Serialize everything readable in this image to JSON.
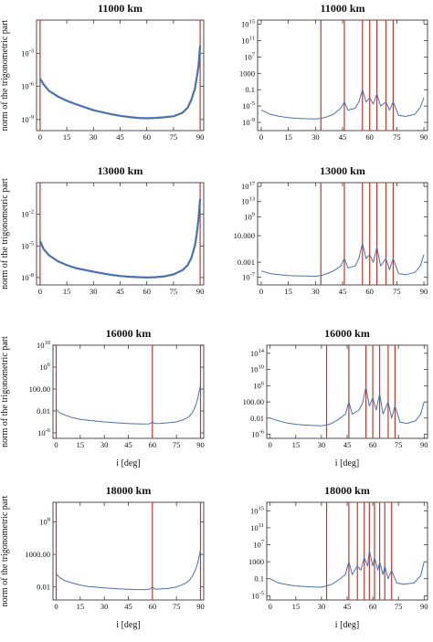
{
  "chart_data": [
    {
      "type": "line",
      "title": "11000 km",
      "xlabel": "",
      "ylabel": "norm of the trigonometric part",
      "xlim": [
        -2,
        92
      ],
      "x_ticks": [
        0,
        15,
        30,
        45,
        60,
        75,
        90
      ],
      "y_scale": "log",
      "ylim": [
        1e-10,
        1
      ],
      "y_ticks": [
        {
          "value": 1e-09,
          "label": "10^-9"
        },
        {
          "value": 1e-06,
          "label": "10^-6"
        },
        {
          "value": 0.001,
          "label": "10^-3"
        }
      ],
      "series_color": "#4a72b0",
      "series_width": 2.2,
      "resonance_color": "#c0392b",
      "resonances": [
        0,
        90
      ],
      "x": [
        0,
        2,
        5,
        10,
        15,
        20,
        30,
        40,
        45,
        50,
        55,
        60,
        65,
        70,
        75,
        80,
        83,
        85,
        87,
        88,
        89,
        90
      ],
      "y": [
        5e-06,
        1.5e-06,
        4e-07,
        1.2e-07,
        5e-08,
        2.5e-08,
        7e-09,
        3e-09,
        2.2e-09,
        1.7e-09,
        1.4e-09,
        1.3e-09,
        1.4e-09,
        1.6e-09,
        2e-09,
        4e-09,
        1.2e-08,
        6e-08,
        6e-07,
        5e-06,
        6e-05,
        0.005
      ]
    },
    {
      "type": "line",
      "title": "11000 km",
      "xlabel": "",
      "ylabel": "",
      "xlim": [
        -2,
        92
      ],
      "x_ticks": [
        0,
        15,
        30,
        45,
        60,
        75,
        90
      ],
      "y_scale": "log",
      "ylim": [
        1e-11,
        1e+16
      ],
      "y_ticks": [
        {
          "value": 1e-09,
          "label": "10^-9"
        },
        {
          "value": 1e-05,
          "label": "10^-5"
        },
        {
          "value": 0.1,
          "label": "0.1"
        },
        {
          "value": 1000,
          "label": "1000"
        },
        {
          "value": 10000000.0,
          "label": "10^7"
        },
        {
          "value": 100000000000.0,
          "label": "10^11"
        },
        {
          "value": 1000000000000000.0,
          "label": "10^15"
        }
      ],
      "series_color": "#4a72b0",
      "series_width": 1,
      "resonance_color": "#c0392b",
      "resonances": [
        33,
        46,
        56,
        60,
        64,
        69,
        73
      ],
      "x": [
        0,
        5,
        10,
        15,
        20,
        25,
        30,
        33,
        36,
        40,
        44,
        46,
        48,
        52,
        54,
        56,
        58,
        60,
        62,
        64,
        66,
        69,
        71,
        73,
        76,
        80,
        85,
        88,
        90
      ],
      "y": [
        1e-06,
        1e-07,
        3e-08,
        1.5e-08,
        1e-08,
        8e-09,
        7e-09,
        1e-08,
        2e-08,
        1e-07,
        3e-06,
        0.0001,
        1e-06,
        3e-06,
        0.0001,
        0.1,
        0.0001,
        0.001,
        3e-05,
        0.01,
        1e-05,
        0.0001,
        1e-06,
        0.0001,
        5e-08,
        3e-08,
        1e-07,
        5e-06,
        0.001
      ]
    },
    {
      "type": "line",
      "title": "13000 km",
      "xlabel": "",
      "ylabel": "norm of the trigonometric part",
      "xlim": [
        -2,
        92
      ],
      "x_ticks": [
        0,
        15,
        30,
        45,
        60,
        75,
        90
      ],
      "y_scale": "log",
      "ylim": [
        2e-09,
        10
      ],
      "y_ticks": [
        {
          "value": 1e-08,
          "label": "10^-8"
        },
        {
          "value": 1e-05,
          "label": "10^-5"
        },
        {
          "value": 0.01,
          "label": "10^-2"
        }
      ],
      "series_color": "#4a72b0",
      "series_width": 2.2,
      "resonance_color": "#c0392b",
      "resonances": [
        0,
        90
      ],
      "x": [
        0,
        2,
        5,
        10,
        15,
        20,
        30,
        40,
        45,
        50,
        55,
        60,
        65,
        70,
        75,
        80,
        83,
        85,
        87,
        88,
        89,
        90
      ],
      "y": [
        3e-05,
        5e-06,
        1.3e-06,
        3.5e-07,
        1.5e-07,
        8e-08,
        3.5e-08,
        1.8e-08,
        1.4e-08,
        1.2e-08,
        1.1e-08,
        1e-08,
        1.1e-08,
        1.3e-08,
        2e-08,
        5e-08,
        1.5e-07,
        7e-07,
        1e-05,
        0.0001,
        0.003,
        0.3
      ]
    },
    {
      "type": "line",
      "title": "13000 km",
      "xlabel": "",
      "ylabel": "",
      "xlim": [
        -2,
        92
      ],
      "x_ticks": [
        0,
        15,
        30,
        45,
        60,
        75,
        90
      ],
      "y_scale": "log",
      "ylim": [
        1e-09,
        1e+18
      ],
      "y_ticks": [
        {
          "value": 1e-07,
          "label": "10^-7"
        },
        {
          "value": 0.001,
          "label": "0.001"
        },
        {
          "value": 10000,
          "label": "10.000"
        },
        {
          "value": 1000000000.0,
          "label": "10^9"
        },
        {
          "value": 10000000000000.0,
          "label": "10^13"
        },
        {
          "value": 1e+17,
          "label": "10^17"
        }
      ],
      "series_color": "#4a72b0",
      "series_width": 1,
      "resonance_color": "#c0392b",
      "resonances": [
        33,
        46,
        56,
        60,
        64,
        69,
        73
      ],
      "x": [
        0,
        5,
        10,
        15,
        20,
        25,
        30,
        33,
        36,
        40,
        44,
        46,
        48,
        52,
        54,
        56,
        58,
        60,
        62,
        64,
        66,
        69,
        71,
        73,
        76,
        80,
        85,
        88,
        90
      ],
      "y": [
        5e-06,
        1e-06,
        5e-07,
        3e-07,
        2.5e-07,
        2.2e-07,
        2e-07,
        3e-07,
        8e-07,
        5e-06,
        0.0001,
        0.01,
        3e-05,
        0.0001,
        0.01,
        100,
        0.01,
        0.1,
        0.001,
        10,
        0.0001,
        0.01,
        1e-05,
        0.01,
        1e-06,
        5e-07,
        2e-06,
        0.0001,
        0.1
      ]
    },
    {
      "type": "line",
      "title": "16000 km",
      "xlabel": "i [deg]",
      "ylabel": "norm of the trigonometric part",
      "xlim": [
        -2,
        92
      ],
      "x_ticks": [
        0,
        15,
        30,
        45,
        60,
        75,
        90
      ],
      "y_scale": "log",
      "ylim": [
        1e-07,
        10000000000.0
      ],
      "y_ticks": [
        {
          "value": 1e-06,
          "label": "10^-6"
        },
        {
          "value": 0.01,
          "label": "0.01"
        },
        {
          "value": 100,
          "label": "100.00"
        },
        {
          "value": 1000000.0,
          "label": "10^6"
        },
        {
          "value": 10000000000.0,
          "label": "10^10"
        }
      ],
      "series_color": "#4a72b0",
      "series_width": 1,
      "resonance_color": "#c0392b",
      "resonances": [
        0,
        60,
        90
      ],
      "x": [
        0,
        2,
        5,
        10,
        15,
        20,
        30,
        40,
        45,
        50,
        55,
        58,
        59,
        60,
        61,
        62,
        65,
        70,
        75,
        80,
        83,
        85,
        87,
        88,
        89,
        90
      ],
      "y": [
        0.02,
        0.005,
        0.002,
        0.0006,
        0.0003,
        0.0002,
        0.0001,
        6e-05,
        5e-05,
        4.5e-05,
        4.2e-05,
        4.5e-05,
        6e-05,
        0.0001,
        6e-05,
        5e-05,
        5.5e-05,
        7e-05,
        0.0001,
        0.0003,
        0.001,
        0.005,
        0.1,
        1,
        20,
        500
      ]
    },
    {
      "type": "line",
      "title": "16000 km",
      "xlabel": "i [deg]",
      "ylabel": "",
      "xlim": [
        -2,
        92
      ],
      "x_ticks": [
        0,
        15,
        30,
        45,
        60,
        75,
        90
      ],
      "y_scale": "log",
      "ylim": [
        1e-07,
        1e+16
      ],
      "y_ticks": [
        {
          "value": 1e-06,
          "label": "10^-6"
        },
        {
          "value": 0.01,
          "label": "0.01"
        },
        {
          "value": 100,
          "label": "100.00"
        },
        {
          "value": 1000000.0,
          "label": "10^6"
        },
        {
          "value": 10000000000.0,
          "label": "10^10"
        },
        {
          "value": 100000000000000.0,
          "label": "10^14"
        }
      ],
      "series_color": "#4a72b0",
      "series_width": 1,
      "resonance_color": "#c0392b",
      "resonances": [
        33,
        46,
        56,
        60,
        64,
        69,
        73
      ],
      "x": [
        0,
        5,
        10,
        15,
        20,
        25,
        30,
        33,
        36,
        40,
        44,
        46,
        48,
        52,
        54,
        56,
        58,
        60,
        62,
        64,
        66,
        69,
        71,
        73,
        76,
        80,
        85,
        88,
        90
      ],
      "y": [
        0.01,
        0.002,
        0.0006,
        0.0003,
        0.0002,
        0.00015,
        0.00012,
        0.0002,
        0.0005,
        0.005,
        0.1,
        100,
        0.1,
        1,
        50,
        500000.0,
        10,
        1000.0,
        1,
        10000.0,
        0.1,
        100,
        0.01,
        10,
        0.001,
        0.0005,
        0.002,
        0.1,
        100
      ]
    },
    {
      "type": "line",
      "title": "18000 km",
      "xlabel": "i [deg]",
      "ylabel": "norm of the trigonometric part",
      "xlim": [
        -2,
        92
      ],
      "x_ticks": [
        0,
        15,
        30,
        45,
        60,
        75,
        90
      ],
      "y_scale": "log",
      "ylim": [
        0.0001,
        100000000000.0
      ],
      "y_ticks": [
        {
          "value": 0.01,
          "label": "0.01"
        },
        {
          "value": 1000,
          "label": "1000.00"
        },
        {
          "value": 100000000.0,
          "label": "10^8"
        }
      ],
      "series_color": "#4a72b0",
      "series_width": 1,
      "resonance_color": "#c0392b",
      "resonances": [
        0,
        60,
        90
      ],
      "x": [
        0,
        2,
        5,
        10,
        15,
        20,
        30,
        40,
        45,
        50,
        55,
        58,
        59,
        60,
        61,
        62,
        65,
        70,
        75,
        80,
        83,
        85,
        87,
        88,
        89,
        90
      ],
      "y": [
        1,
        0.3,
        0.1,
        0.04,
        0.02,
        0.012,
        0.007,
        0.005,
        0.0045,
        0.004,
        0.004,
        0.0045,
        0.006,
        0.01,
        0.006,
        0.0045,
        0.005,
        0.006,
        0.01,
        0.03,
        0.1,
        0.5,
        5,
        30,
        300,
        5000
      ]
    },
    {
      "type": "line",
      "title": "18000 km",
      "xlabel": "i [deg]",
      "ylabel": "",
      "xlim": [
        -2,
        92
      ],
      "x_ticks": [
        0,
        15,
        30,
        45,
        60,
        75,
        90
      ],
      "y_scale": "log",
      "ylim": [
        1e-06,
        1e+17
      ],
      "y_ticks": [
        {
          "value": 1e-05,
          "label": "10^-5"
        },
        {
          "value": 0.1,
          "label": "0.1"
        },
        {
          "value": 1000,
          "label": "1000"
        },
        {
          "value": 10000000.0,
          "label": "10^7"
        },
        {
          "value": 100000000000.0,
          "label": "10^11"
        },
        {
          "value": 1000000000000000.0,
          "label": "10^15"
        }
      ],
      "series_color": "#4a72b0",
      "series_width": 1,
      "resonance_color": "#c0392b",
      "resonances": [
        33,
        46,
        51,
        55,
        58,
        61,
        64,
        67,
        71
      ],
      "x": [
        0,
        5,
        10,
        15,
        20,
        25,
        30,
        33,
        36,
        40,
        44,
        46,
        48,
        51,
        53,
        55,
        57,
        58,
        60,
        61,
        63,
        64,
        66,
        67,
        69,
        71,
        74,
        78,
        84,
        88,
        90
      ],
      "y": [
        0.1,
        0.01,
        0.004,
        0.002,
        0.0015,
        0.0012,
        0.001,
        0.002,
        0.005,
        0.05,
        1,
        1000.0,
        1,
        100,
        10,
        10000.0,
        100,
        500000.0,
        100,
        10000.0,
        10,
        1000.0,
        1,
        100,
        0.1,
        10,
        0.01,
        0.005,
        0.01,
        0.5,
        1000.0
      ]
    }
  ]
}
